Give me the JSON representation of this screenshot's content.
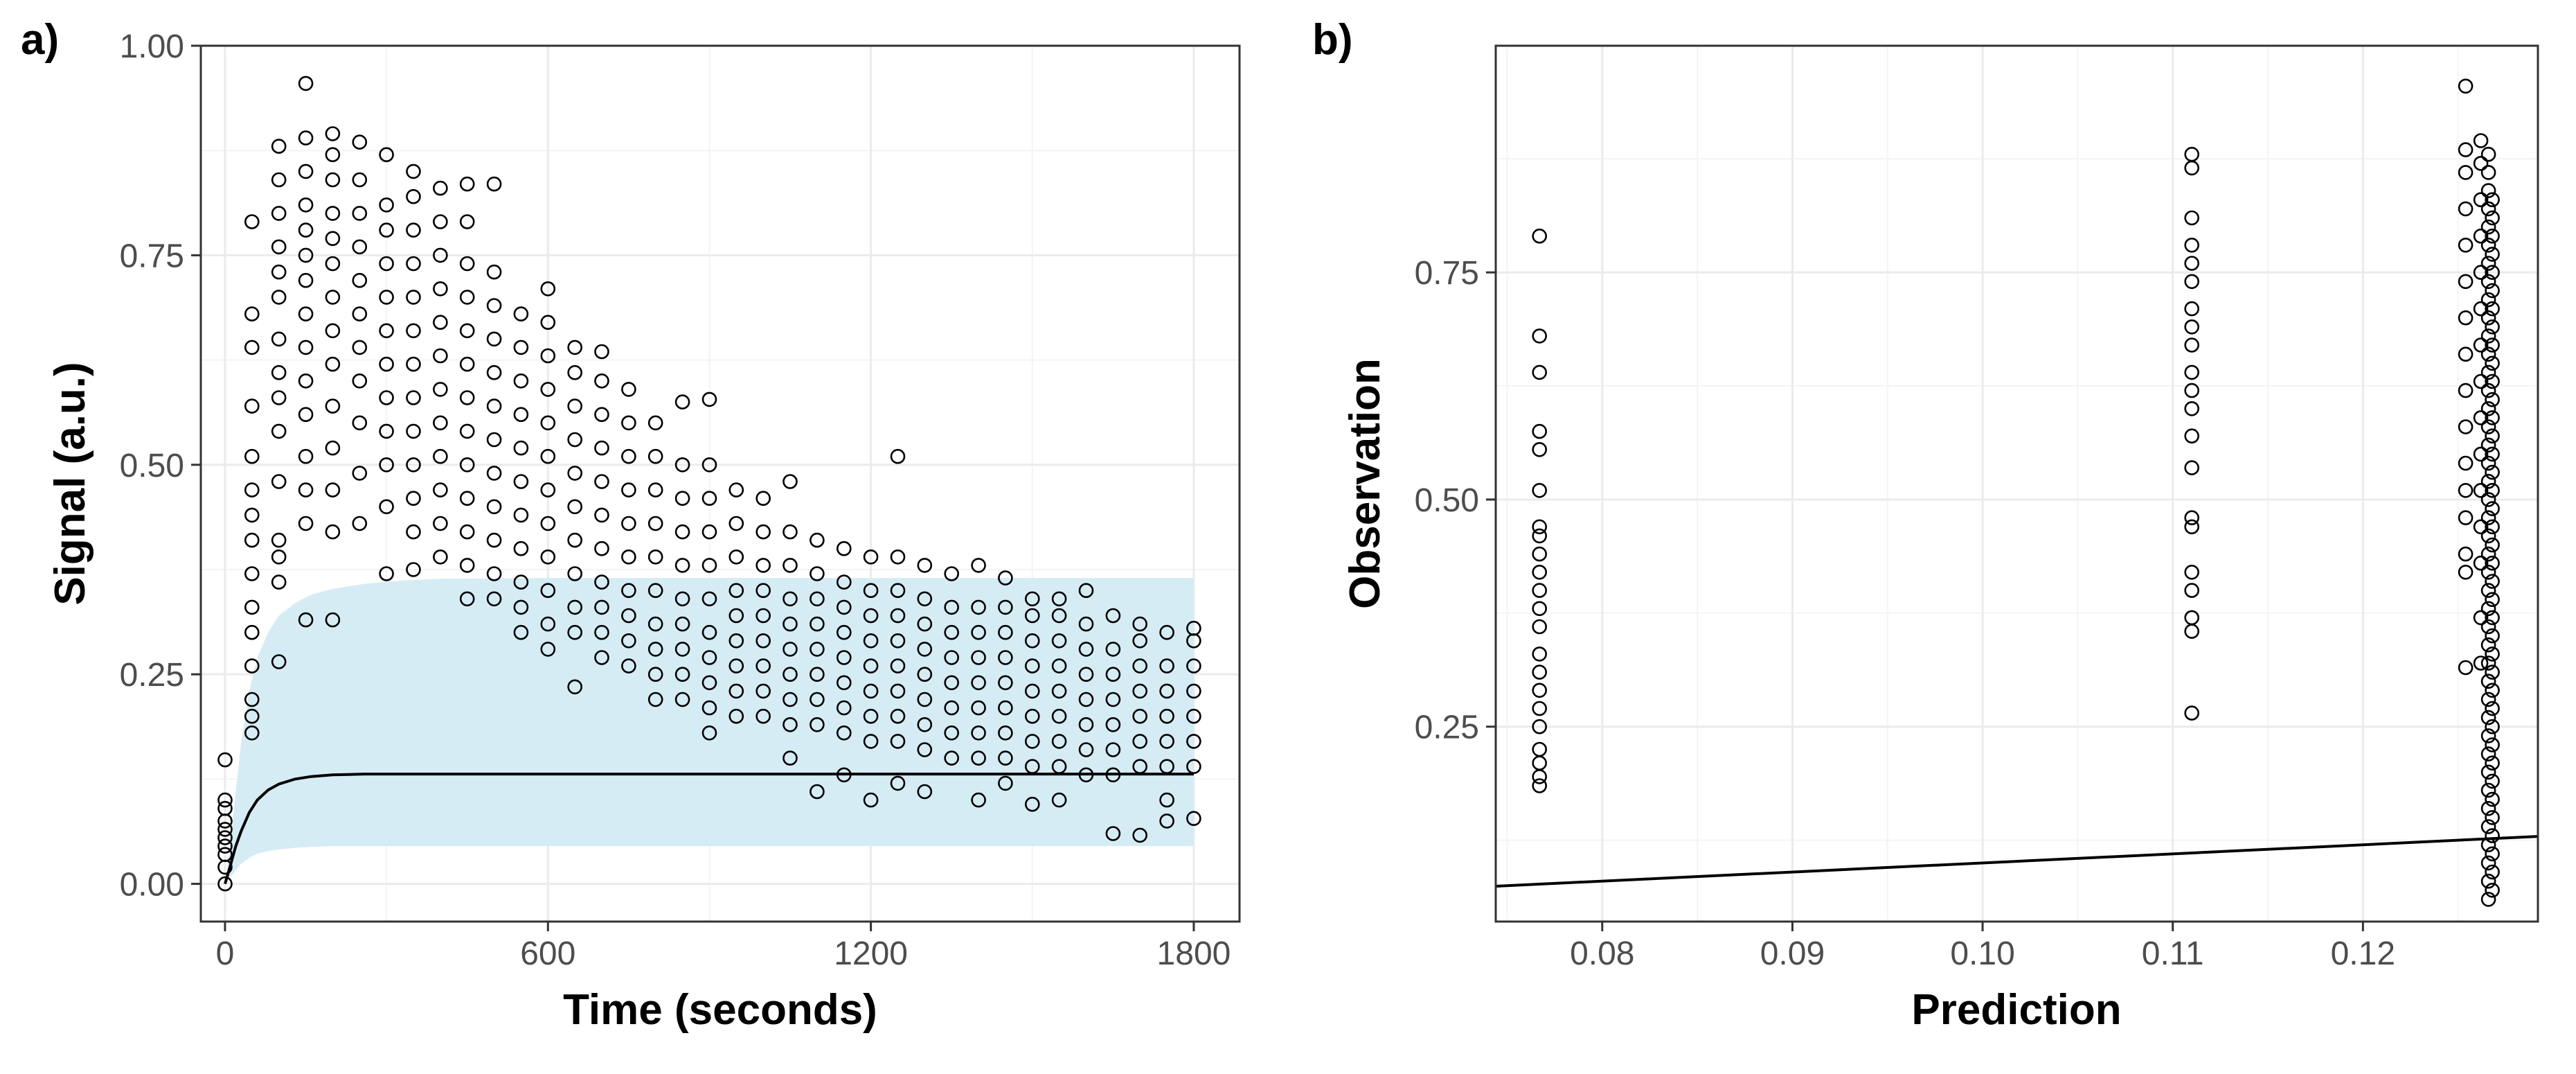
{
  "figure": {
    "colors": {
      "ribbon": "#d6ecf5",
      "grid_major": "#ebebeb",
      "grid_minor": "#f4f4f4",
      "frame": "#333333",
      "point": "#000000"
    }
  },
  "chart_data": [
    {
      "type": "scatter",
      "panel_label": "a)",
      "title": "",
      "xlabel": "Time (seconds)",
      "ylabel": "Signal (a.u.)",
      "xlim": [
        -45,
        1885
      ],
      "ylim": [
        -0.045,
        1.0
      ],
      "x_ticks": [
        0,
        600,
        1200,
        1800
      ],
      "x_tick_labels": [
        "0",
        "600",
        "1200",
        "1800"
      ],
      "y_ticks": [
        0.0,
        0.25,
        0.5,
        0.75,
        1.0
      ],
      "y_tick_labels": [
        "0.00",
        "0.25",
        "0.50",
        "0.75",
        "1.00"
      ],
      "grid": true,
      "ribbon": {
        "x": [
          0,
          10,
          20,
          30,
          45,
          60,
          80,
          100,
          130,
          160,
          200,
          260,
          330,
          400,
          600,
          900,
          1200,
          1500,
          1800
        ],
        "lower": [
          0.0,
          0.008,
          0.016,
          0.024,
          0.031,
          0.036,
          0.039,
          0.041,
          0.043,
          0.044,
          0.045,
          0.045,
          0.045,
          0.045,
          0.045,
          0.045,
          0.045,
          0.045,
          0.045
        ],
        "upper": [
          0.0,
          0.05,
          0.11,
          0.17,
          0.23,
          0.27,
          0.3,
          0.32,
          0.335,
          0.345,
          0.352,
          0.358,
          0.362,
          0.364,
          0.365,
          0.365,
          0.365,
          0.365,
          0.365
        ]
      },
      "fit_line": {
        "x": [
          0,
          10,
          20,
          30,
          45,
          60,
          80,
          100,
          130,
          160,
          200,
          260,
          330,
          400,
          600,
          900,
          1200,
          1500,
          1800
        ],
        "y": [
          0.0,
          0.022,
          0.045,
          0.063,
          0.085,
          0.1,
          0.112,
          0.119,
          0.125,
          0.128,
          0.13,
          0.131,
          0.131,
          0.131,
          0.131,
          0.131,
          0.131,
          0.131,
          0.131
        ]
      },
      "observation_columns": [
        {
          "x": 0,
          "values": [
            0.0,
            0.02,
            0.035,
            0.045,
            0.055,
            0.065,
            0.075,
            0.09,
            0.1,
            0.148
          ]
        },
        {
          "x": 50,
          "values": [
            0.18,
            0.2,
            0.22,
            0.26,
            0.3,
            0.33,
            0.37,
            0.41,
            0.44,
            0.47,
            0.51,
            0.57,
            0.64,
            0.68,
            0.79
          ]
        },
        {
          "x": 100,
          "values": [
            0.265,
            0.36,
            0.39,
            0.41,
            0.48,
            0.54,
            0.58,
            0.61,
            0.65,
            0.7,
            0.73,
            0.76,
            0.8,
            0.84,
            0.88
          ]
        },
        {
          "x": 150,
          "values": [
            0.315,
            0.43,
            0.47,
            0.51,
            0.56,
            0.6,
            0.64,
            0.68,
            0.72,
            0.75,
            0.78,
            0.81,
            0.85,
            0.89,
            0.955
          ]
        },
        {
          "x": 200,
          "values": [
            0.315,
            0.42,
            0.47,
            0.52,
            0.57,
            0.62,
            0.66,
            0.7,
            0.74,
            0.77,
            0.8,
            0.84,
            0.87,
            0.895
          ]
        },
        {
          "x": 250,
          "values": [
            0.43,
            0.49,
            0.55,
            0.6,
            0.64,
            0.68,
            0.72,
            0.76,
            0.8,
            0.84,
            0.885
          ]
        },
        {
          "x": 300,
          "values": [
            0.37,
            0.45,
            0.5,
            0.54,
            0.58,
            0.62,
            0.66,
            0.7,
            0.74,
            0.78,
            0.81,
            0.87
          ]
        },
        {
          "x": 350,
          "values": [
            0.375,
            0.42,
            0.46,
            0.5,
            0.54,
            0.58,
            0.62,
            0.66,
            0.7,
            0.74,
            0.78,
            0.82,
            0.85
          ]
        },
        {
          "x": 400,
          "values": [
            0.39,
            0.43,
            0.47,
            0.51,
            0.55,
            0.59,
            0.63,
            0.67,
            0.71,
            0.75,
            0.79,
            0.83
          ]
        },
        {
          "x": 450,
          "values": [
            0.34,
            0.38,
            0.42,
            0.46,
            0.5,
            0.54,
            0.58,
            0.62,
            0.66,
            0.7,
            0.74,
            0.79,
            0.835
          ]
        },
        {
          "x": 500,
          "values": [
            0.34,
            0.37,
            0.41,
            0.45,
            0.49,
            0.53,
            0.57,
            0.61,
            0.65,
            0.69,
            0.73,
            0.835
          ]
        },
        {
          "x": 550,
          "values": [
            0.3,
            0.33,
            0.36,
            0.4,
            0.44,
            0.48,
            0.52,
            0.56,
            0.6,
            0.64,
            0.68
          ]
        },
        {
          "x": 600,
          "values": [
            0.28,
            0.31,
            0.35,
            0.39,
            0.43,
            0.47,
            0.51,
            0.55,
            0.59,
            0.63,
            0.67,
            0.71
          ]
        },
        {
          "x": 650,
          "values": [
            0.235,
            0.3,
            0.33,
            0.37,
            0.41,
            0.45,
            0.49,
            0.53,
            0.57,
            0.61,
            0.64
          ]
        },
        {
          "x": 700,
          "values": [
            0.27,
            0.3,
            0.33,
            0.36,
            0.4,
            0.44,
            0.48,
            0.52,
            0.56,
            0.6,
            0.635
          ]
        },
        {
          "x": 750,
          "values": [
            0.26,
            0.29,
            0.32,
            0.35,
            0.39,
            0.43,
            0.47,
            0.51,
            0.55,
            0.59
          ]
        },
        {
          "x": 800,
          "values": [
            0.22,
            0.25,
            0.28,
            0.31,
            0.35,
            0.39,
            0.43,
            0.47,
            0.51,
            0.55
          ]
        },
        {
          "x": 850,
          "values": [
            0.22,
            0.25,
            0.28,
            0.31,
            0.34,
            0.38,
            0.42,
            0.46,
            0.5,
            0.575
          ]
        },
        {
          "x": 900,
          "values": [
            0.18,
            0.21,
            0.24,
            0.27,
            0.3,
            0.34,
            0.38,
            0.42,
            0.46,
            0.5,
            0.578
          ]
        },
        {
          "x": 950,
          "values": [
            0.2,
            0.23,
            0.26,
            0.29,
            0.32,
            0.35,
            0.39,
            0.43,
            0.47
          ]
        },
        {
          "x": 1000,
          "values": [
            0.2,
            0.23,
            0.26,
            0.29,
            0.32,
            0.35,
            0.38,
            0.42,
            0.46
          ]
        },
        {
          "x": 1050,
          "values": [
            0.15,
            0.19,
            0.22,
            0.25,
            0.28,
            0.31,
            0.34,
            0.38,
            0.42,
            0.48
          ]
        },
        {
          "x": 1100,
          "values": [
            0.11,
            0.19,
            0.22,
            0.25,
            0.28,
            0.31,
            0.34,
            0.37,
            0.41
          ]
        },
        {
          "x": 1150,
          "values": [
            0.13,
            0.18,
            0.21,
            0.24,
            0.27,
            0.3,
            0.33,
            0.36,
            0.4
          ]
        },
        {
          "x": 1200,
          "values": [
            0.1,
            0.17,
            0.2,
            0.23,
            0.26,
            0.29,
            0.32,
            0.35,
            0.39
          ]
        },
        {
          "x": 1250,
          "values": [
            0.12,
            0.17,
            0.2,
            0.23,
            0.26,
            0.29,
            0.32,
            0.35,
            0.39,
            0.51
          ]
        },
        {
          "x": 1300,
          "values": [
            0.11,
            0.16,
            0.19,
            0.22,
            0.25,
            0.28,
            0.31,
            0.34,
            0.38
          ]
        },
        {
          "x": 1350,
          "values": [
            0.15,
            0.18,
            0.21,
            0.24,
            0.27,
            0.3,
            0.33,
            0.37
          ]
        },
        {
          "x": 1400,
          "values": [
            0.1,
            0.15,
            0.18,
            0.21,
            0.24,
            0.27,
            0.3,
            0.33,
            0.38
          ]
        },
        {
          "x": 1450,
          "values": [
            0.12,
            0.15,
            0.18,
            0.21,
            0.24,
            0.27,
            0.3,
            0.33,
            0.365
          ]
        },
        {
          "x": 1500,
          "values": [
            0.095,
            0.14,
            0.17,
            0.2,
            0.23,
            0.26,
            0.29,
            0.32,
            0.34
          ]
        },
        {
          "x": 1550,
          "values": [
            0.1,
            0.14,
            0.17,
            0.2,
            0.23,
            0.26,
            0.29,
            0.32,
            0.34
          ]
        },
        {
          "x": 1600,
          "values": [
            0.13,
            0.16,
            0.19,
            0.22,
            0.25,
            0.28,
            0.31,
            0.35
          ]
        },
        {
          "x": 1650,
          "values": [
            0.06,
            0.13,
            0.16,
            0.19,
            0.22,
            0.25,
            0.28,
            0.32
          ]
        },
        {
          "x": 1700,
          "values": [
            0.058,
            0.14,
            0.17,
            0.2,
            0.23,
            0.26,
            0.29,
            0.31
          ]
        },
        {
          "x": 1750,
          "values": [
            0.075,
            0.1,
            0.14,
            0.17,
            0.2,
            0.23,
            0.26,
            0.3
          ]
        },
        {
          "x": 1800,
          "values": [
            0.078,
            0.14,
            0.17,
            0.2,
            0.23,
            0.26,
            0.29,
            0.305
          ]
        }
      ]
    },
    {
      "type": "scatter",
      "panel_label": "b)",
      "title": "",
      "xlabel": "Prediction",
      "ylabel": "Observation",
      "xlim": [
        0.0744,
        0.1292
      ],
      "ylim": [
        0.0355,
        0.9995
      ],
      "x_ticks": [
        0.08,
        0.09,
        0.1,
        0.11,
        0.12
      ],
      "x_tick_labels": [
        "0.08",
        "0.09",
        "0.10",
        "0.11",
        "0.12"
      ],
      "y_ticks": [
        0.25,
        0.5,
        0.75
      ],
      "y_tick_labels": [
        "0.25",
        "0.50",
        "0.75"
      ],
      "grid": true,
      "identity_line": {
        "x": [
          0.0744,
          0.1292
        ],
        "y": [
          0.0744,
          0.1292
        ]
      },
      "observation_columns": [
        {
          "x": 0.0767,
          "values": [
            0.185,
            0.195,
            0.21,
            0.225,
            0.25,
            0.27,
            0.29,
            0.31,
            0.33,
            0.36,
            0.38,
            0.4,
            0.42,
            0.44,
            0.46,
            0.47,
            0.51,
            0.555,
            0.575,
            0.64,
            0.68,
            0.79
          ]
        },
        {
          "x": 0.111,
          "values": [
            0.265,
            0.355,
            0.37,
            0.4,
            0.42,
            0.47,
            0.48,
            0.535,
            0.57,
            0.6,
            0.62,
            0.64,
            0.67,
            0.69,
            0.71,
            0.74,
            0.76,
            0.78,
            0.81,
            0.865,
            0.88
          ]
        },
        {
          "x": 0.1254,
          "values": [
            0.315,
            0.42,
            0.44,
            0.48,
            0.51,
            0.54,
            0.58,
            0.62,
            0.66,
            0.7,
            0.74,
            0.78,
            0.82,
            0.86,
            0.885,
            0.955
          ]
        },
        {
          "x": 0.1262,
          "values": [
            0.32,
            0.37,
            0.43,
            0.47,
            0.51,
            0.55,
            0.59,
            0.63,
            0.67,
            0.71,
            0.75,
            0.79,
            0.83,
            0.87,
            0.895
          ]
        },
        {
          "x": 0.1266,
          "values": [
            0.06,
            0.08,
            0.1,
            0.12,
            0.14,
            0.16,
            0.18,
            0.2,
            0.22,
            0.24,
            0.26,
            0.28,
            0.3,
            0.32,
            0.34,
            0.36,
            0.38,
            0.4,
            0.42,
            0.44,
            0.46,
            0.48,
            0.5,
            0.52,
            0.54,
            0.56,
            0.58,
            0.6,
            0.62,
            0.64,
            0.66,
            0.68,
            0.7,
            0.72,
            0.74,
            0.76,
            0.78,
            0.8,
            0.82,
            0.84,
            0.86,
            0.88
          ]
        },
        {
          "x": 0.1268,
          "values": [
            0.07,
            0.09,
            0.11,
            0.13,
            0.15,
            0.17,
            0.19,
            0.21,
            0.23,
            0.25,
            0.27,
            0.29,
            0.31,
            0.33,
            0.35,
            0.37,
            0.39,
            0.41,
            0.43,
            0.45,
            0.47,
            0.49,
            0.51,
            0.53,
            0.55,
            0.57,
            0.59,
            0.61,
            0.63,
            0.65,
            0.67,
            0.69,
            0.71,
            0.73,
            0.75,
            0.77,
            0.79,
            0.81,
            0.83
          ]
        }
      ]
    }
  ]
}
